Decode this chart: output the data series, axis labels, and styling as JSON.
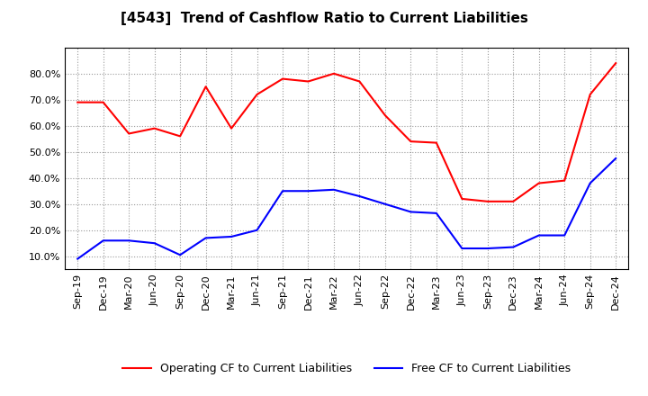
{
  "title": "[4543]  Trend of Cashflow Ratio to Current Liabilities",
  "x_labels": [
    "Sep-19",
    "Dec-19",
    "Mar-20",
    "Jun-20",
    "Sep-20",
    "Dec-20",
    "Mar-21",
    "Jun-21",
    "Sep-21",
    "Dec-21",
    "Mar-22",
    "Jun-22",
    "Sep-22",
    "Dec-22",
    "Mar-23",
    "Jun-23",
    "Sep-23",
    "Dec-23",
    "Mar-24",
    "Jun-24",
    "Sep-24",
    "Dec-24"
  ],
  "operating_cf": [
    69.0,
    69.0,
    57.0,
    59.0,
    56.0,
    75.0,
    59.0,
    72.0,
    78.0,
    77.0,
    80.0,
    77.0,
    64.0,
    54.0,
    53.5,
    32.0,
    31.0,
    31.0,
    38.0,
    39.0,
    72.0,
    84.0
  ],
  "free_cf": [
    9.0,
    16.0,
    16.0,
    15.0,
    10.5,
    17.0,
    17.5,
    20.0,
    35.0,
    35.0,
    35.5,
    33.0,
    30.0,
    27.0,
    26.5,
    13.0,
    13.0,
    13.5,
    18.0,
    18.0,
    38.0,
    47.5
  ],
  "operating_color": "#ff0000",
  "free_color": "#0000ff",
  "ylim": [
    5,
    90
  ],
  "yticks": [
    10.0,
    20.0,
    30.0,
    40.0,
    50.0,
    60.0,
    70.0,
    80.0
  ],
  "legend_labels": [
    "Operating CF to Current Liabilities",
    "Free CF to Current Liabilities"
  ],
  "background_color": "#ffffff",
  "grid_color": "#999999",
  "title_fontsize": 11,
  "tick_fontsize": 8,
  "legend_fontsize": 9
}
